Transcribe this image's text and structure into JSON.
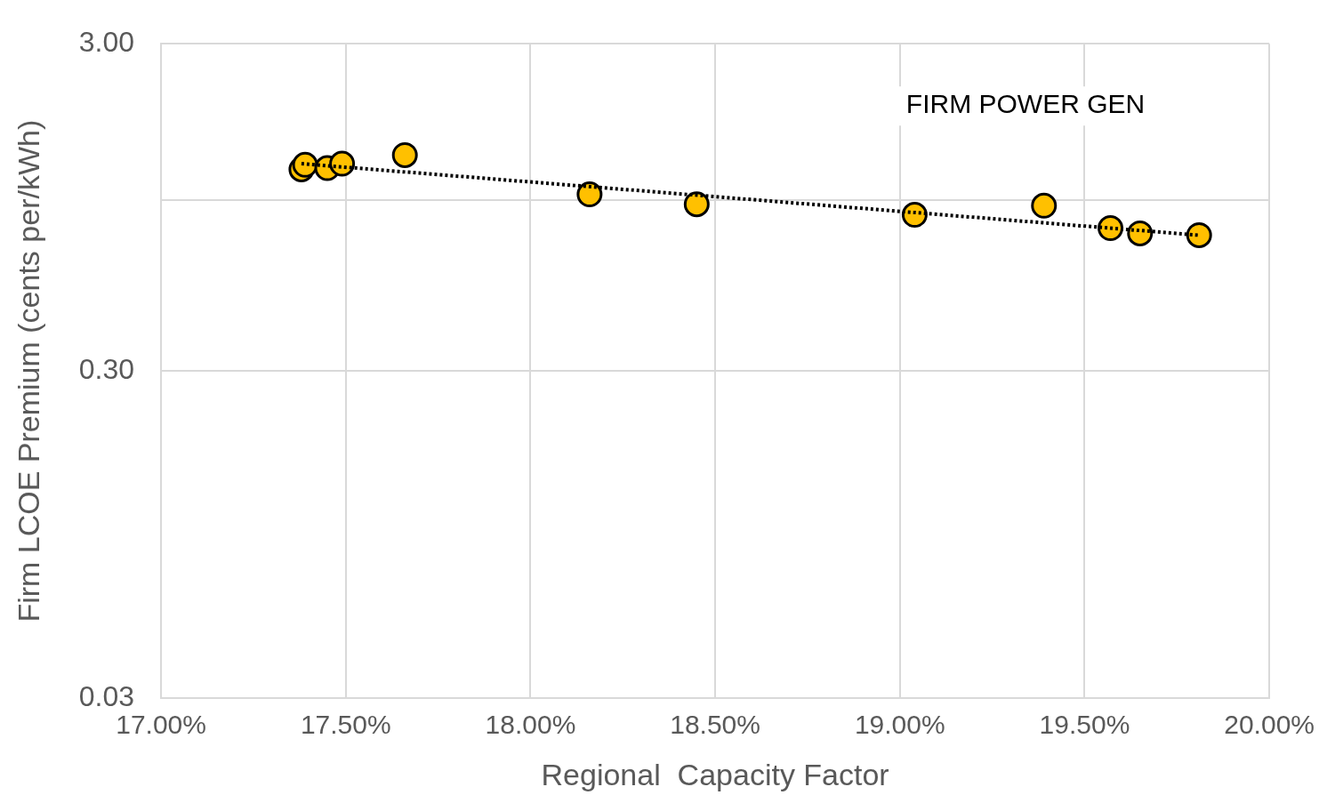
{
  "chart_data": {
    "type": "scatter",
    "title": "FIRM POWER GEN",
    "xlabel": "Regional  Capacity Factor",
    "ylabel": "Firm LCOE Premium (cents per/kWh)",
    "log": "y",
    "grid": true,
    "legend": false,
    "marker": "circle",
    "xlim": [
      17,
      20
    ],
    "xticks": [
      {
        "value": 17,
        "label": "17.00%"
      },
      {
        "value": 17.5,
        "label": "17.50%"
      },
      {
        "value": 18,
        "label": "18.00%"
      },
      {
        "value": 18.5,
        "label": "18.50%"
      },
      {
        "value": 19,
        "label": "19.00%"
      },
      {
        "value": 19.5,
        "label": "19.50%"
      },
      {
        "value": 20,
        "label": "20.00%"
      }
    ],
    "ylim": [
      0.03,
      3
    ],
    "yticks": [
      {
        "value": 0.03,
        "label": "0.03"
      },
      {
        "value": 0.3,
        "label": "0.30"
      },
      {
        "value": 1,
        "label": null
      },
      {
        "value": 3,
        "label": "3.00"
      }
    ],
    "series": [
      {
        "color": "#ffc000",
        "x": [
          17.38,
          17.39,
          17.45,
          17.49,
          17.66,
          18.16,
          18.45,
          19.04,
          19.39,
          19.57,
          19.65,
          19.81
        ],
        "values": [
          1.24,
          1.28,
          1.25,
          1.29,
          1.37,
          1.04,
          0.97,
          0.9,
          0.96,
          0.82,
          0.79,
          0.78
        ]
      },
      {
        "type": "line",
        "color": "#000000",
        "line_style": "dotted",
        "marker": "none",
        "x": [
          17.38,
          19.81
        ],
        "values": [
          1.29,
          0.78
        ]
      }
    ]
  }
}
